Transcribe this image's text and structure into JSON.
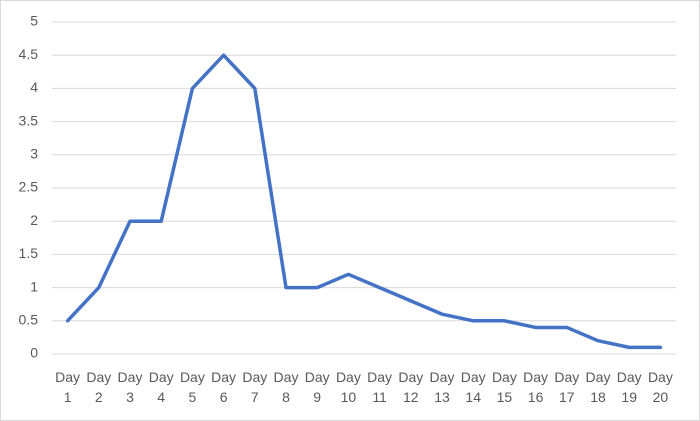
{
  "chart_data": {
    "type": "line",
    "categories": [
      "Day 1",
      "Day 2",
      "Day 3",
      "Day 4",
      "Day 5",
      "Day 6",
      "Day 7",
      "Day 8",
      "Day 9",
      "Day 10",
      "Day 11",
      "Day 12",
      "Day 13",
      "Day 14",
      "Day 15",
      "Day 16",
      "Day 17",
      "Day 18",
      "Day 19",
      "Day 20"
    ],
    "values": [
      0.5,
      1,
      2,
      2,
      4,
      4.5,
      4,
      1,
      1,
      1.2,
      1,
      0.8,
      0.6,
      0.5,
      0.5,
      0.4,
      0.4,
      0.2,
      0.1,
      0.1
    ],
    "color": "#4472c4",
    "ylim": [
      0,
      5
    ],
    "yticks": [
      0,
      0.5,
      1,
      1.5,
      2,
      2.5,
      3,
      3.5,
      4,
      4.5,
      5
    ],
    "grid": true
  }
}
